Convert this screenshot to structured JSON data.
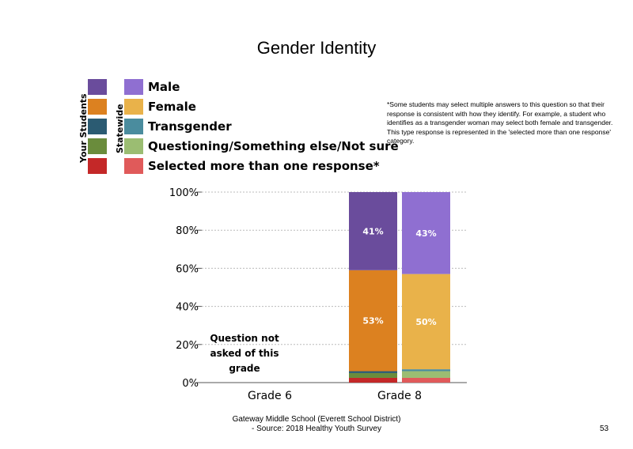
{
  "title": "Gender Identity",
  "legend": {
    "your_students_label": "Your Students",
    "statewide_label": "Statewide",
    "items": [
      {
        "label": "Male",
        "your_color": "#6a4c9c",
        "state_color": "#8f6fd1"
      },
      {
        "label": "Female",
        "your_color": "#dc8120",
        "state_color": "#e9b24a"
      },
      {
        "label": "Transgender",
        "your_color": "#2b5b72",
        "state_color": "#4a8c9e"
      },
      {
        "label": "Questioning/Something else/Not sure",
        "your_color": "#6a8c3c",
        "state_color": "#9bbd72"
      },
      {
        "label": "Selected more than one response*",
        "your_color": "#c42828",
        "state_color": "#e05a5a"
      }
    ]
  },
  "note": "*Some students may select multiple answers to this question so that their response is consistent with how they identify. For example, a student who identifies as a transgender woman may select both female and transgender. This type response is represented in the 'selected more than one response' category.",
  "not_asked_text": "Question not asked of this grade",
  "footer": {
    "line1": "Gateway Middle School (Everett School District)",
    "line2": "- Source: 2018 Healthy Youth Survey"
  },
  "page_number": "53",
  "chart_data": {
    "type": "bar",
    "stacked": true,
    "categories": [
      "Grade 6",
      "Grade 8"
    ],
    "yticks": [
      "0%",
      "20%",
      "40%",
      "60%",
      "80%",
      "100%"
    ],
    "ylim": [
      0,
      100
    ],
    "grid": true,
    "series_order": [
      "Selected more than one response*",
      "Questioning/Something else/Not sure",
      "Transgender",
      "Female",
      "Male"
    ],
    "bars": [
      {
        "category": "Grade 8",
        "group": "Your Students",
        "segments": [
          {
            "series": "Selected more than one response*",
            "value": 2.5,
            "color": "#c42828"
          },
          {
            "series": "Questioning/Something else/Not sure",
            "value": 2.5,
            "color": "#6a8c3c"
          },
          {
            "series": "Transgender",
            "value": 1,
            "color": "#2b5b72"
          },
          {
            "series": "Female",
            "value": 53,
            "color": "#dc8120",
            "label": "53%"
          },
          {
            "series": "Male",
            "value": 41,
            "color": "#6a4c9c",
            "label": "41%"
          }
        ]
      },
      {
        "category": "Grade 8",
        "group": "Statewide",
        "segments": [
          {
            "series": "Selected more than one response*",
            "value": 2.5,
            "color": "#e05a5a"
          },
          {
            "series": "Questioning/Something else/Not sure",
            "value": 3.5,
            "color": "#9bbd72"
          },
          {
            "series": "Transgender",
            "value": 1,
            "color": "#4a8c9e"
          },
          {
            "series": "Female",
            "value": 50,
            "color": "#e9b24a",
            "label": "50%"
          },
          {
            "series": "Male",
            "value": 43,
            "color": "#8f6fd1",
            "label": "43%"
          }
        ]
      }
    ]
  }
}
